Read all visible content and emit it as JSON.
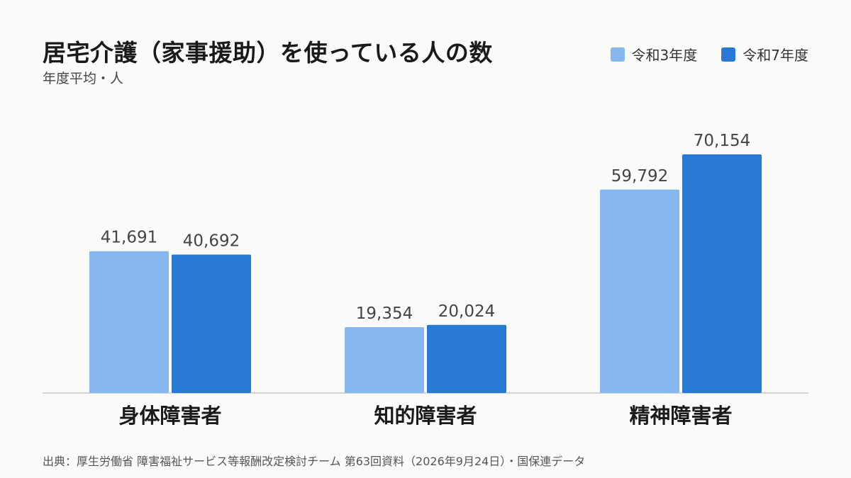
{
  "chart_data": {
    "type": "bar",
    "title": "居宅介護（家事援助）を使っている人の数",
    "subtitle": "年度平均・人",
    "categories": [
      "身体障害者",
      "知的障害者",
      "精神障害者"
    ],
    "series": [
      {
        "name": "令和3年度",
        "color": "#86b7ef",
        "values": [
          41691,
          19354,
          59792
        ],
        "labels": [
          "41,691",
          "19,354",
          "59,792"
        ]
      },
      {
        "name": "令和7年度",
        "color": "#2878d6",
        "values": [
          40692,
          20024,
          70154
        ],
        "labels": [
          "40,692",
          "20,024",
          "70,154"
        ]
      }
    ],
    "ylim": [
      0,
      80000
    ],
    "grid": false,
    "legend_position": "top-right"
  },
  "source": "出典：厚生労働省 障害福祉サービス等報酬改定検討チーム 第63回資料（2026年9月24日）・国保連データ",
  "colors": {
    "axis": "#c8c8c8",
    "value_label": "#444444",
    "category_label": "#1a1a1a"
  }
}
